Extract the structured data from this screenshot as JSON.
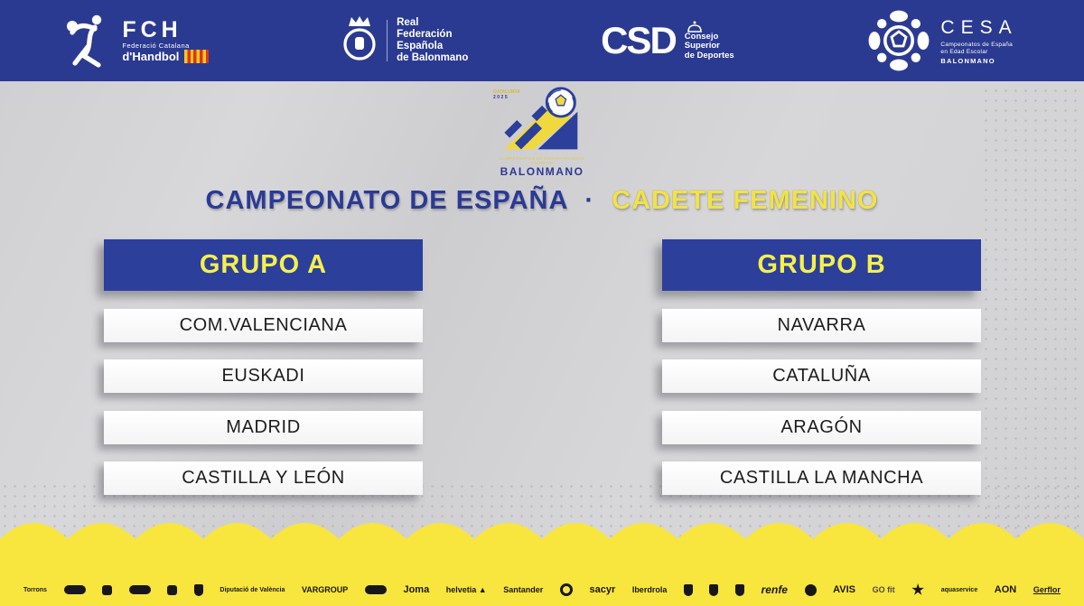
{
  "header": {
    "fch": {
      "acronym": "FCH",
      "line1": "Federació Catalana",
      "line2": "d'Handbol"
    },
    "rfeb": {
      "lines": [
        "Real",
        "Federación",
        "Española",
        "de Balonmano"
      ]
    },
    "csd": {
      "acronym": "CSD",
      "lines": [
        "Consejo",
        "Superior",
        "de Deportes"
      ]
    },
    "cesa": {
      "acronym": "CESA",
      "lines": [
        "Campeonatos de España",
        "en Edad Escolar"
      ],
      "sport": "BALONMANO"
    }
  },
  "event_logo": {
    "place": "CATALUNYA",
    "year": "2025",
    "subtitle": "CAMPEONATOS DE ESPAÑA EN EDAD ESCOLAR",
    "name": "BALONMANO"
  },
  "title": {
    "part1": "CAMPEONATO DE ESPAÑA",
    "separator": "·",
    "part2": "CADETE FEMENINO"
  },
  "groups": [
    {
      "name": "GRUPO A",
      "teams": [
        "COM.VALENCIANA",
        "EUSKADI",
        "MADRID",
        "CASTILLA Y LEÓN"
      ]
    },
    {
      "name": "GRUPO B",
      "teams": [
        "NAVARRA",
        "CATALUÑA",
        "ARAGÓN",
        "CASTILLA LA MANCHA"
      ]
    }
  ],
  "footer": {
    "sponsors": [
      {
        "name": "torrons",
        "kind": "s-text-xs",
        "label": "Torrons"
      },
      {
        "name": "oval-logo",
        "kind": "s-pill",
        "label": ""
      },
      {
        "name": "fundacio-logo",
        "kind": "s-blob",
        "label": ""
      },
      {
        "name": "idcrea-logo",
        "kind": "s-pill",
        "label": ""
      },
      {
        "name": "heart-logo",
        "kind": "s-blob",
        "label": ""
      },
      {
        "name": "loterias-logo",
        "kind": "s-shield",
        "label": ""
      },
      {
        "name": "diputacio-valencia",
        "kind": "s-text-xs",
        "label": "Diputació de València"
      },
      {
        "name": "vargroup",
        "kind": "s-text-sm",
        "label": "VARGROUP"
      },
      {
        "name": "t-logo",
        "kind": "s-pill",
        "label": ""
      },
      {
        "name": "joma",
        "kind": "s-text",
        "label": "Joma"
      },
      {
        "name": "helvetia",
        "kind": "s-text-sm",
        "label": "helvetia ▲"
      },
      {
        "name": "santander",
        "kind": "s-text-sm",
        "label": "Santander"
      },
      {
        "name": "correos-logo",
        "kind": "s-circle",
        "label": ""
      },
      {
        "name": "sacyr",
        "kind": "s-text",
        "label": "sacyr"
      },
      {
        "name": "iberdrola",
        "kind": "s-text-sm",
        "label": "Iberdrola"
      },
      {
        "name": "generalitat-shield",
        "kind": "s-shield",
        "label": ""
      },
      {
        "name": "federation-shield",
        "kind": "s-shield",
        "label": ""
      },
      {
        "name": "ceuta-shield",
        "kind": "s-shield",
        "label": ""
      },
      {
        "name": "renfe",
        "kind": "s-text-italic",
        "label": "renfe"
      },
      {
        "name": "ball-logo",
        "kind": "s-ball",
        "label": ""
      },
      {
        "name": "avis",
        "kind": "s-text",
        "label": "AVIS"
      },
      {
        "name": "gofit",
        "kind": "s-text-sm s-gray",
        "label": "GO fit"
      },
      {
        "name": "star-logo",
        "kind": "s-star",
        "label": ""
      },
      {
        "name": "aquaservice",
        "kind": "s-text-xs",
        "label": "aquaservice"
      },
      {
        "name": "aon",
        "kind": "s-text",
        "label": "AON"
      },
      {
        "name": "gerflor",
        "kind": "s-text-sm s-underline",
        "label": "Gerflor"
      }
    ]
  },
  "colors": {
    "header_blue": "#2b3a91",
    "group_blue": "#2b3f9b",
    "title_blue": "#2b3a94",
    "yellow": "#f0e24a",
    "footer_yellow": "#f8e53d",
    "background_gray": "#d3d3d5"
  }
}
